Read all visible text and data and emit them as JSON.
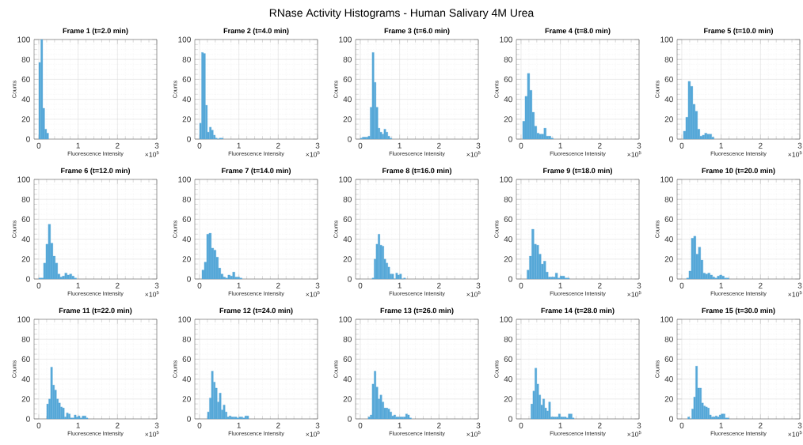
{
  "chart_data": [
    {
      "type": "other",
      "title": "RNase Activity Histograms - Human Salivary 4M Urea"
    },
    {
      "type": "histogram",
      "title": "Frame 1 (t=2.0 min)",
      "xlabel": "Fluorescence Intensity",
      "ylabel": "Counts",
      "annotations": [
        "×10$^{5}$"
      ],
      "color": "#56a8d8",
      "grid": true,
      "xlim": [
        -0.12,
        3
      ],
      "ylim": [
        0,
        100
      ],
      "xticks": [
        0,
        1,
        2,
        3
      ],
      "yticks": [
        0,
        20,
        40,
        60,
        80,
        100
      ],
      "bins": [
        0,
        0.05,
        0.1,
        0.15,
        0.2,
        0.25
      ],
      "values": [
        77,
        100,
        31,
        10,
        6
      ]
    },
    {
      "type": "histogram",
      "title": "Frame 2 (t=4.0 min)",
      "xlabel": "Fluorescence Intensity",
      "ylabel": "Counts",
      "annotations": [
        "×10$^{5}$"
      ],
      "color": "#56a8d8",
      "grid": true,
      "xlim": [
        -0.12,
        3
      ],
      "ylim": [
        0,
        100
      ],
      "xticks": [
        0,
        1,
        2,
        3
      ],
      "yticks": [
        0,
        20,
        40,
        60,
        80,
        100
      ],
      "bins": [
        0,
        0.05,
        0.1,
        0.15,
        0.2,
        0.25,
        0.3,
        0.35,
        0.4,
        0.45,
        0.5,
        0.55,
        0.6
      ],
      "values": [
        16,
        87,
        86,
        34,
        7,
        12,
        9,
        4,
        1,
        0,
        1,
        1
      ]
    },
    {
      "type": "histogram",
      "title": "Frame 3 (t=6.0 min)",
      "xlabel": "Fluorescence Intensity",
      "ylabel": "Counts",
      "annotations": [
        "×10$^{5}$"
      ],
      "color": "#56a8d8",
      "grid": true,
      "xlim": [
        -0.12,
        3
      ],
      "ylim": [
        0,
        100
      ],
      "xticks": [
        0,
        1,
        2,
        3
      ],
      "yticks": [
        0,
        20,
        40,
        60,
        80,
        100
      ],
      "bins": [
        0,
        0.05,
        0.1,
        0.15,
        0.2,
        0.25,
        0.3,
        0.35,
        0.4,
        0.45,
        0.5,
        0.55,
        0.6,
        0.65,
        0.7,
        0.75,
        0.8
      ],
      "values": [
        1,
        2,
        2,
        2,
        3,
        32,
        87,
        57,
        32,
        11,
        7,
        5,
        10,
        7,
        3,
        1
      ]
    },
    {
      "type": "histogram",
      "title": "Frame 4 (t=8.0 min)",
      "xlabel": "Fluorescence Intensity",
      "ylabel": "Counts",
      "annotations": [
        "×10$^{5}$"
      ],
      "color": "#56a8d8",
      "grid": true,
      "xlim": [
        -0.12,
        3
      ],
      "ylim": [
        0,
        100
      ],
      "xticks": [
        0,
        1,
        2,
        3
      ],
      "yticks": [
        0,
        20,
        40,
        60,
        80,
        100
      ],
      "bins": [
        0.04,
        0.1,
        0.16,
        0.22,
        0.28,
        0.34,
        0.4,
        0.46,
        0.52,
        0.58,
        0.64,
        0.7,
        0.76,
        0.82
      ],
      "values": [
        18,
        43,
        66,
        49,
        27,
        13,
        6,
        5,
        5,
        11,
        3,
        3,
        1
      ]
    },
    {
      "type": "histogram",
      "title": "Frame 5 (t=10.0 min)",
      "xlabel": "Fluorescence Intensity",
      "ylabel": "Counts",
      "annotations": [
        "×10$^{5}$"
      ],
      "color": "#56a8d8",
      "grid": true,
      "xlim": [
        -0.12,
        3
      ],
      "ylim": [
        0,
        100
      ],
      "xticks": [
        0,
        1,
        2,
        3
      ],
      "yticks": [
        0,
        20,
        40,
        60,
        80,
        100
      ],
      "bins": [
        0.04,
        0.1,
        0.16,
        0.22,
        0.28,
        0.34,
        0.4,
        0.46,
        0.52,
        0.58,
        0.64,
        0.7,
        0.76,
        0.82
      ],
      "values": [
        8,
        22,
        58,
        53,
        35,
        28,
        10,
        3,
        4,
        6,
        5,
        5,
        2
      ]
    },
    {
      "type": "histogram",
      "title": "Frame 6 (t=12.0 min)",
      "xlabel": "Fluorescence Intensity",
      "ylabel": "Counts",
      "annotations": [
        "×10$^{5}$"
      ],
      "color": "#56a8d8",
      "grid": true,
      "xlim": [
        -0.12,
        3
      ],
      "ylim": [
        0,
        100
      ],
      "xticks": [
        0,
        1,
        2,
        3
      ],
      "yticks": [
        0,
        20,
        40,
        60,
        80,
        100
      ],
      "bins": [
        0,
        0.06,
        0.12,
        0.18,
        0.24,
        0.3,
        0.36,
        0.42,
        0.48,
        0.54,
        0.6,
        0.66,
        0.72,
        0.78,
        0.84,
        0.9,
        0.96
      ],
      "values": [
        1,
        1,
        16,
        35,
        55,
        36,
        23,
        16,
        5,
        2,
        3,
        6,
        4,
        5,
        3,
        1
      ]
    },
    {
      "type": "histogram",
      "title": "Frame 7 (t=14.0 min)",
      "xlabel": "Fluorescence Intensity",
      "ylabel": "Counts",
      "annotations": [
        "×10$^{5}$"
      ],
      "color": "#56a8d8",
      "grid": true,
      "xlim": [
        -0.12,
        3
      ],
      "ylim": [
        0,
        100
      ],
      "xticks": [
        0,
        1,
        2,
        3
      ],
      "yticks": [
        0,
        20,
        40,
        60,
        80,
        100
      ],
      "bins": [
        0.06,
        0.12,
        0.18,
        0.24,
        0.3,
        0.36,
        0.42,
        0.48,
        0.54,
        0.6,
        0.66,
        0.72,
        0.78,
        0.84,
        0.9,
        0.96,
        1.02,
        1.08
      ],
      "values": [
        9,
        17,
        45,
        46,
        31,
        29,
        22,
        11,
        5,
        2,
        1,
        4,
        3,
        7,
        2,
        2,
        1
      ]
    },
    {
      "type": "histogram",
      "title": "Frame 8 (t=16.0 min)",
      "xlabel": "Fluorescence Intensity",
      "ylabel": "Counts",
      "annotations": [
        "×10$^{5}$"
      ],
      "color": "#56a8d8",
      "grid": true,
      "xlim": [
        -0.12,
        3
      ],
      "ylim": [
        0,
        100
      ],
      "xticks": [
        0,
        1,
        2,
        3
      ],
      "yticks": [
        0,
        20,
        40,
        60,
        80,
        100
      ],
      "bins": [
        0.3,
        0.35,
        0.4,
        0.45,
        0.5,
        0.55,
        0.6,
        0.65,
        0.7,
        0.75,
        0.8,
        0.85,
        0.9,
        0.95,
        1.0,
        1.05,
        1.1,
        1.15
      ],
      "values": [
        1,
        20,
        35,
        45,
        34,
        33,
        20,
        16,
        12,
        5,
        5,
        0,
        6,
        4,
        5,
        0,
        1
      ]
    },
    {
      "type": "histogram",
      "title": "Frame 9 (t=18.0 min)",
      "xlabel": "Fluorescence Intensity",
      "ylabel": "Counts",
      "annotations": [
        "×10$^{5}$"
      ],
      "color": "#56a8d8",
      "grid": true,
      "xlim": [
        -0.12,
        3
      ],
      "ylim": [
        0,
        100
      ],
      "xticks": [
        0,
        1,
        2,
        3
      ],
      "yticks": [
        0,
        20,
        40,
        60,
        80,
        100
      ],
      "bins": [
        0.15,
        0.21,
        0.27,
        0.33,
        0.39,
        0.45,
        0.51,
        0.57,
        0.63,
        0.69,
        0.75,
        0.81,
        0.87,
        0.93,
        0.99,
        1.05,
        1.11,
        1.17,
        1.23
      ],
      "values": [
        9,
        23,
        50,
        35,
        34,
        25,
        15,
        18,
        7,
        2,
        2,
        2,
        6,
        1,
        3,
        3,
        1,
        1
      ]
    },
    {
      "type": "histogram",
      "title": "Frame 10 (t=20.0 min)",
      "xlabel": "Fluorescence Intensity",
      "ylabel": "Counts",
      "annotations": [
        "×10$^{5}$"
      ],
      "color": "#56a8d8",
      "grid": true,
      "xlim": [
        -0.12,
        3
      ],
      "ylim": [
        0,
        100
      ],
      "xticks": [
        0,
        1,
        2,
        3
      ],
      "yticks": [
        0,
        20,
        40,
        60,
        80,
        100
      ],
      "bins": [
        0.12,
        0.18,
        0.24,
        0.3,
        0.36,
        0.42,
        0.48,
        0.54,
        0.6,
        0.66,
        0.72,
        0.78,
        0.84,
        0.9,
        0.96,
        1.02,
        1.08,
        1.14,
        1.2
      ],
      "values": [
        1,
        8,
        41,
        43,
        25,
        32,
        19,
        6,
        5,
        6,
        4,
        2,
        1,
        3,
        4,
        3,
        1,
        1
      ]
    },
    {
      "type": "histogram",
      "title": "Frame 11 (t=22.0 min)",
      "xlabel": "Fluorescence Intensity",
      "ylabel": "Counts",
      "annotations": [
        "×10$^{5}$"
      ],
      "color": "#56a8d8",
      "grid": true,
      "xlim": [
        -0.12,
        3
      ],
      "ylim": [
        0,
        100
      ],
      "xticks": [
        0,
        1,
        2,
        3
      ],
      "yticks": [
        0,
        20,
        40,
        60,
        80,
        100
      ],
      "bins": [
        0.2,
        0.25,
        0.3,
        0.35,
        0.4,
        0.45,
        0.5,
        0.55,
        0.6,
        0.65,
        0.7,
        0.75,
        0.8,
        0.85,
        0.9,
        0.95,
        1.0,
        1.05,
        1.1,
        1.15,
        1.2,
        1.25
      ],
      "values": [
        15,
        20,
        52,
        34,
        29,
        20,
        16,
        12,
        11,
        2,
        6,
        5,
        1,
        1,
        4,
        2,
        3,
        1,
        3,
        3,
        1
      ]
    },
    {
      "type": "histogram",
      "title": "Frame 12 (t=24.0 min)",
      "xlabel": "Fluorescence Intensity",
      "ylabel": "Counts",
      "annotations": [
        "×10$^{5}$"
      ],
      "color": "#56a8d8",
      "grid": true,
      "xlim": [
        -0.12,
        3
      ],
      "ylim": [
        0,
        100
      ],
      "xticks": [
        0,
        1,
        2,
        3
      ],
      "yticks": [
        0,
        20,
        40,
        60,
        80,
        100
      ],
      "bins": [
        0.2,
        0.25,
        0.3,
        0.35,
        0.4,
        0.45,
        0.5,
        0.55,
        0.6,
        0.65,
        0.7,
        0.75,
        0.8,
        0.85,
        0.9,
        0.95,
        1.0,
        1.05,
        1.1,
        1.15,
        1.2,
        1.25
      ],
      "values": [
        7,
        21,
        48,
        37,
        31,
        17,
        26,
        9,
        14,
        7,
        2,
        3,
        2,
        2,
        2,
        1,
        2,
        2,
        1,
        3,
        3
      ]
    },
    {
      "type": "histogram",
      "title": "Frame 13 (t=26.0 min)",
      "xlabel": "Fluorescence Intensity",
      "ylabel": "Counts",
      "annotations": [
        "×10$^{5}$"
      ],
      "color": "#56a8d8",
      "grid": true,
      "xlim": [
        -0.12,
        3
      ],
      "ylim": [
        0,
        100
      ],
      "xticks": [
        0,
        1,
        2,
        3
      ],
      "yticks": [
        0,
        20,
        40,
        60,
        80,
        100
      ],
      "bins": [
        0.2,
        0.25,
        0.3,
        0.35,
        0.4,
        0.45,
        0.5,
        0.55,
        0.6,
        0.65,
        0.7,
        0.75,
        0.8,
        0.85,
        0.9,
        0.95,
        1.0,
        1.05,
        1.1,
        1.15,
        1.2,
        1.25,
        1.3
      ],
      "values": [
        2,
        4,
        35,
        48,
        32,
        20,
        24,
        17,
        11,
        11,
        10,
        7,
        3,
        4,
        2,
        2,
        2,
        2,
        2,
        5,
        4,
        1
      ]
    },
    {
      "type": "histogram",
      "title": "Frame 14 (t=28.0 min)",
      "xlabel": "Fluorescence Intensity",
      "ylabel": "Counts",
      "annotations": [
        "×10$^{5}$"
      ],
      "color": "#56a8d8",
      "grid": true,
      "xlim": [
        -0.12,
        3
      ],
      "ylim": [
        0,
        100
      ],
      "xticks": [
        0,
        1,
        2,
        3
      ],
      "yticks": [
        0,
        20,
        40,
        60,
        80,
        100
      ],
      "bins": [
        0.25,
        0.3,
        0.35,
        0.4,
        0.45,
        0.5,
        0.55,
        0.6,
        0.65,
        0.7,
        0.75,
        0.8,
        0.85,
        0.9,
        0.95,
        1.0,
        1.05,
        1.1,
        1.15,
        1.2,
        1.25,
        1.3,
        1.35
      ],
      "values": [
        15,
        28,
        51,
        35,
        24,
        14,
        20,
        11,
        8,
        17,
        2,
        2,
        2,
        2,
        5,
        2,
        2,
        2,
        1,
        5,
        5,
        1
      ]
    },
    {
      "type": "histogram",
      "title": "Frame 15 (t=30.0 min)",
      "xlabel": "Fluorescence Intensity",
      "ylabel": "Counts",
      "annotations": [
        "×10$^{5}$"
      ],
      "color": "#56a8d8",
      "grid": true,
      "xlim": [
        -0.12,
        3
      ],
      "ylim": [
        0,
        100
      ],
      "xticks": [
        0,
        1,
        2,
        3
      ],
      "yticks": [
        0,
        20,
        40,
        60,
        80,
        100
      ],
      "bins": [
        0.15,
        0.2,
        0.25,
        0.3,
        0.35,
        0.4,
        0.45,
        0.5,
        0.55,
        0.6,
        0.65,
        0.7,
        0.75,
        0.8,
        0.85,
        0.9,
        0.95,
        1.0,
        1.05,
        1.1,
        1.15,
        1.2
      ],
      "values": [
        2,
        0,
        10,
        22,
        53,
        31,
        31,
        16,
        13,
        12,
        11,
        4,
        2,
        2,
        3,
        2,
        4,
        5,
        5,
        1,
        1
      ]
    }
  ]
}
